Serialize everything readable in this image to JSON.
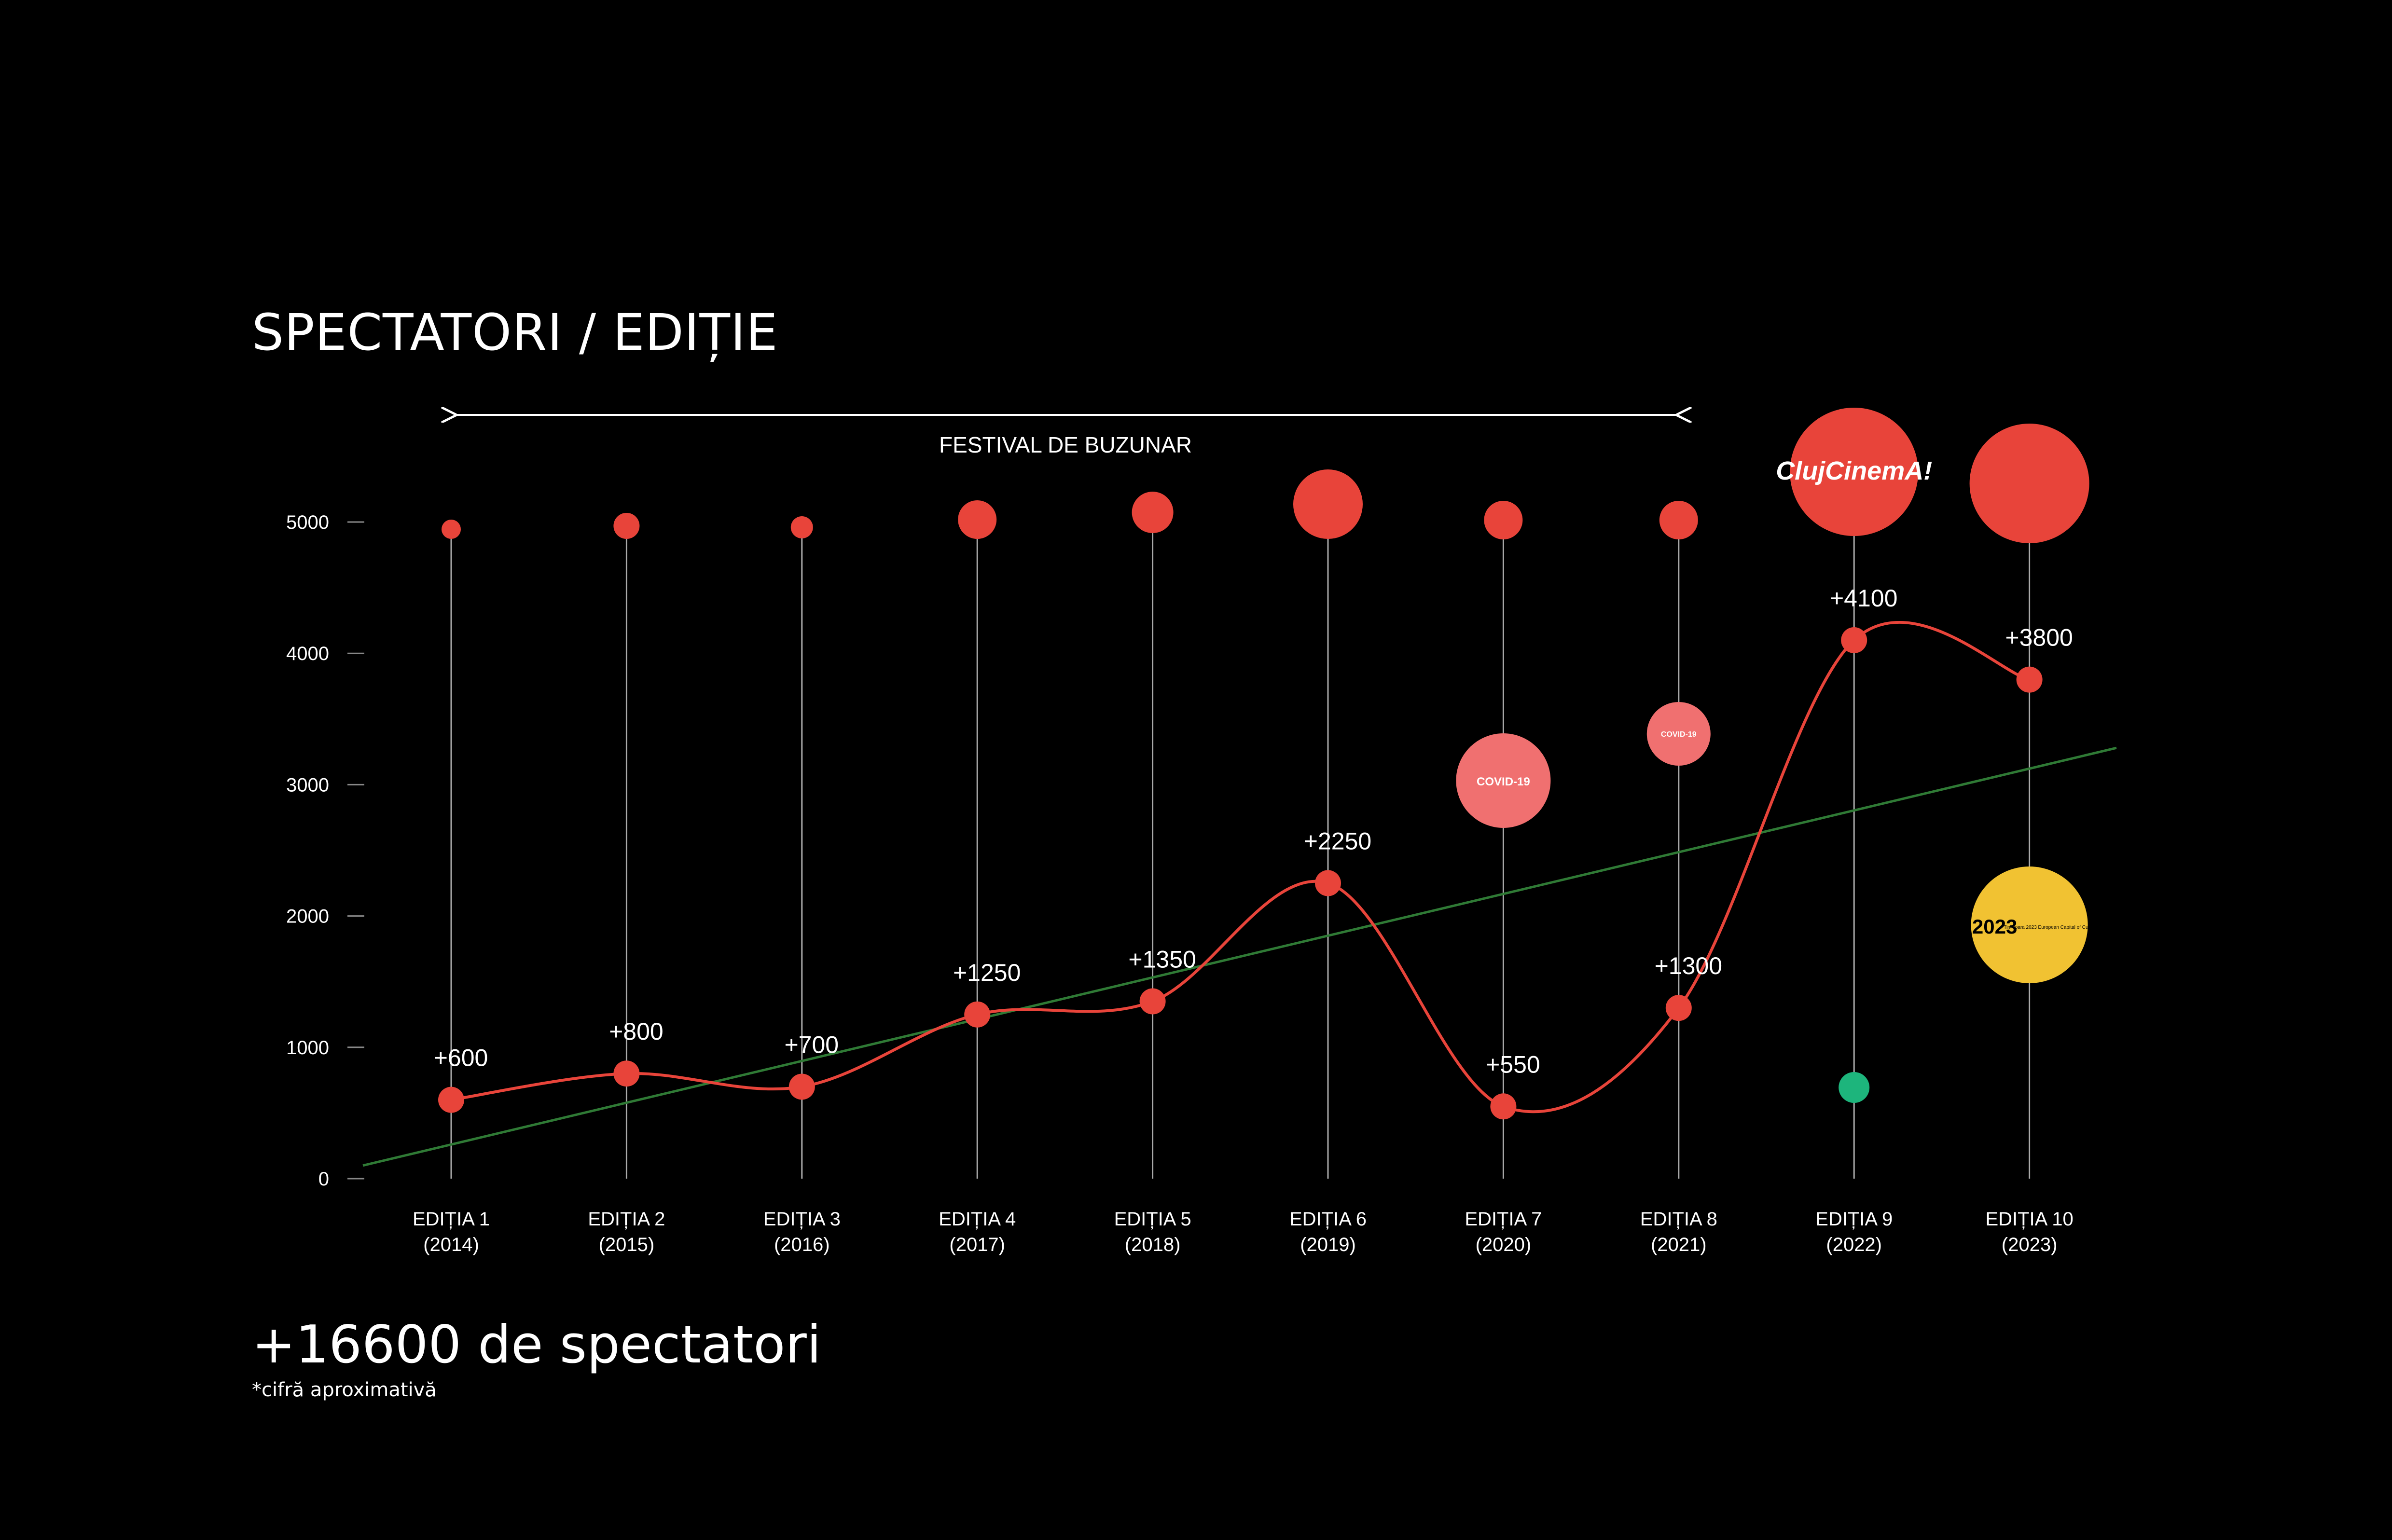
{
  "title": "SPECTATORI / EDIȚIE",
  "total": "+16600 de spectatori",
  "footnote": "*cifră aproximativă",
  "period_label": "FESTIVAL DE BUZUNAR",
  "colors": {
    "background": "#000000",
    "accent_red": "#E8443A",
    "covid_circle": "#F07070",
    "trend_line": "#2F7A35",
    "capital_badge": "#F1C232",
    "green_badge": "#1DB57C"
  },
  "chart_data": {
    "type": "line",
    "title": "SPECTATORI / EDIȚIE",
    "categories": [
      [
        "EDIȚIA 1",
        "(2014)"
      ],
      [
        "EDIȚIA 2",
        "(2015)"
      ],
      [
        "EDIȚIA 3",
        "(2016)"
      ],
      [
        "EDIȚIA 4",
        "(2017)"
      ],
      [
        "EDIȚIA 5",
        "(2018)"
      ],
      [
        "EDIȚIA 6",
        "(2019)"
      ],
      [
        "EDIȚIA 7",
        "(2020)"
      ],
      [
        "EDIȚIA 8",
        "(2021)"
      ],
      [
        "EDIȚIA 9",
        "(2022)"
      ],
      [
        "EDIȚIA 10",
        "(2023)"
      ]
    ],
    "values": [
      600,
      800,
      700,
      1250,
      1350,
      2250,
      550,
      1300,
      4100,
      3800
    ],
    "data_labels": [
      "+600",
      "+800",
      "+700",
      "+1250",
      "+1350",
      "+2250",
      "+550",
      "+1300",
      "+4100",
      "+3800"
    ],
    "ylim": [
      0,
      5000
    ],
    "yticks": [
      "0",
      "1000",
      "2000",
      "3000",
      "4000",
      "5000"
    ],
    "trendline": {
      "from_value": 100,
      "to_value": 3280
    },
    "annotations": [
      {
        "edition": 7,
        "text": "COVID-19"
      },
      {
        "edition": 8,
        "text": "COVID-19"
      },
      {
        "edition": 9,
        "text": "ClujCinemA!",
        "type": "logo"
      },
      {
        "edition": 10,
        "text": "2023 Timișoara 2023 European Capital of Culture",
        "type": "logo"
      }
    ],
    "grid": false,
    "legend": "none"
  }
}
